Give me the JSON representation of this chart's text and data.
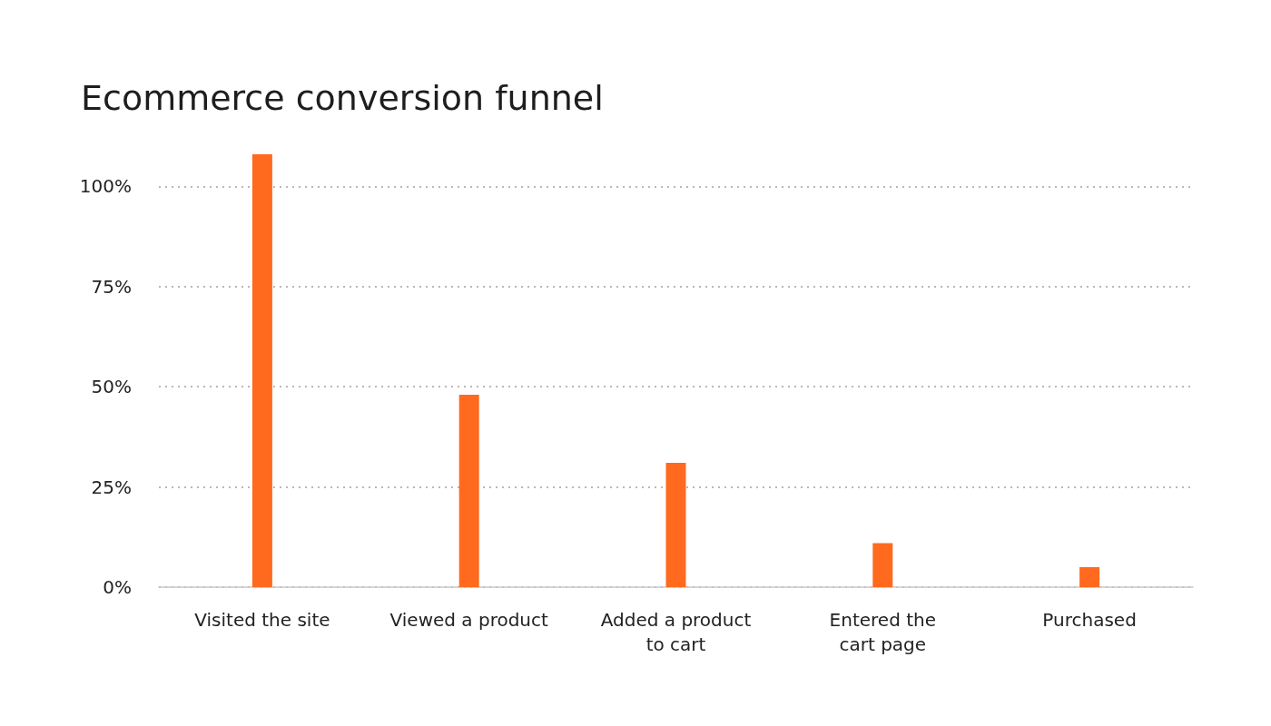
{
  "chart_data": {
    "type": "bar",
    "title": "Ecommerce conversion funnel",
    "categories": [
      "Visited the site",
      "Viewed a product",
      "Added a product\nto cart",
      "Entered the\ncart page",
      "Purchased"
    ],
    "values": [
      108,
      48,
      31,
      11,
      5
    ],
    "color": "#ff6a1f",
    "yticks": [
      {
        "value": 0,
        "label": "0%"
      },
      {
        "value": 25,
        "label": "25%"
      },
      {
        "value": 50,
        "label": "50%"
      },
      {
        "value": 75,
        "label": "75%"
      },
      {
        "value": 100,
        "label": "100%"
      }
    ],
    "ylim": [
      0,
      108
    ],
    "grid": "y"
  }
}
